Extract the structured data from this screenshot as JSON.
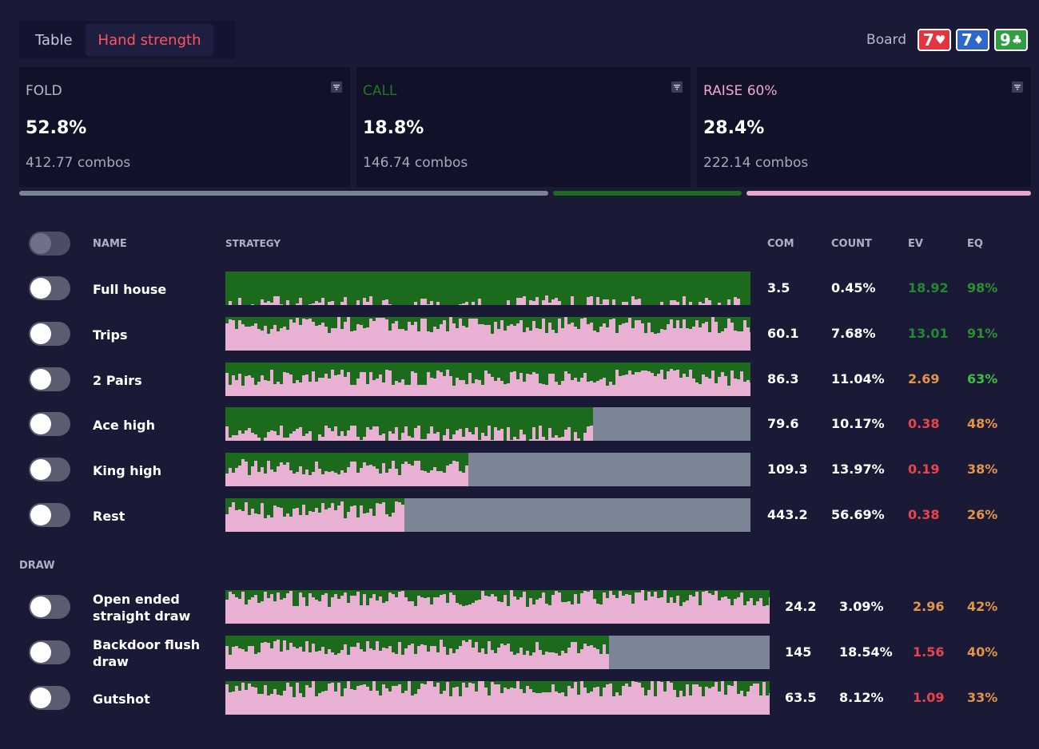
{
  "tabs": [
    {
      "label": "Table",
      "active": false
    },
    {
      "label": "Hand strength",
      "active": true
    }
  ],
  "board": {
    "label": "Board",
    "cards": [
      {
        "rank": "7",
        "suit": "♥",
        "color": "#e3343f"
      },
      {
        "rank": "7",
        "suit": "♦",
        "color": "#2f66cc"
      },
      {
        "rank": "9",
        "suit": "♣",
        "color": "#2e9e3e"
      }
    ]
  },
  "actions": [
    {
      "name": "FOLD",
      "percent": "52.8%",
      "combos": "412.77 combos",
      "color": "#7a8494"
    },
    {
      "name": "CALL",
      "percent": "18.8%",
      "combos": "146.74 combos",
      "color": "#1e6b1e"
    },
    {
      "name": "RAISE 60%",
      "percent": "28.4%",
      "combos": "222.14 combos",
      "color": "#e8a8cc"
    }
  ],
  "columns": {
    "name": "NAME",
    "strategy": "STRATEGY",
    "com": "COM",
    "count": "COUNT",
    "ev": "EV",
    "eq": "EQ"
  },
  "colors": {
    "fold": "#7b8595",
    "call": "#1c6a1c",
    "raise": "#e8b0d2",
    "ev_green": "#1f8a2f",
    "ev_orange": "#e29548",
    "ev_red": "#e8434e",
    "eq_green": "#3fbf3f",
    "eq_orange": "#e29548"
  },
  "made_hands": [
    {
      "name": "Full house",
      "com": "3.5",
      "count": "0.45%",
      "ev": "18.92",
      "eq": "98%",
      "ev_color": "#1f8a2f",
      "eq_color": "#2e8f2e",
      "strategy": {
        "fold": 0.0,
        "call": 0.97,
        "raise": 0.03
      }
    },
    {
      "name": "Trips",
      "com": "60.1",
      "count": "7.68%",
      "ev": "13.01",
      "eq": "91%",
      "ev_color": "#1f8a2f",
      "eq_color": "#2e8f2e",
      "strategy": {
        "fold": 0.0,
        "call": 0.25,
        "raise": 0.75
      }
    },
    {
      "name": "2 Pairs",
      "com": "86.3",
      "count": "11.04%",
      "ev": "2.69",
      "eq": "63%",
      "ev_color": "#e29548",
      "eq_color": "#3fbf3f",
      "strategy": {
        "fold": 0.0,
        "call": 0.45,
        "raise": 0.55
      }
    },
    {
      "name": "Ace high",
      "com": "79.6",
      "count": "10.17%",
      "ev": "0.38",
      "eq": "48%",
      "ev_color": "#e8434e",
      "eq_color": "#e29548",
      "strategy": {
        "fold": 0.3,
        "call": 0.55,
        "raise": 0.15
      }
    },
    {
      "name": "King high",
      "com": "109.3",
      "count": "13.97%",
      "ev": "0.19",
      "eq": "38%",
      "ev_color": "#e8434e",
      "eq_color": "#e29548",
      "strategy": {
        "fold": 0.54,
        "call": 0.2,
        "raise": 0.26
      }
    },
    {
      "name": "Rest",
      "com": "443.2",
      "count": "56.69%",
      "ev": "0.38",
      "eq": "26%",
      "ev_color": "#e8434e",
      "eq_color": "#e29548",
      "strategy": {
        "fold": 0.66,
        "call": 0.12,
        "raise": 0.22
      }
    }
  ],
  "draw_section": {
    "label": "DRAW"
  },
  "draws": [
    {
      "name_line1": "Open ended",
      "name_line2": "straight draw",
      "com": "24.2",
      "count": "3.09%",
      "ev": "2.96",
      "eq": "42%",
      "ev_color": "#e29548",
      "eq_color": "#e29548",
      "strategy": {
        "fold": 0.0,
        "call": 0.25,
        "raise": 0.75
      }
    },
    {
      "name_line1": "Backdoor flush",
      "name_line2": "draw",
      "com": "145",
      "count": "18.54%",
      "ev": "1.56",
      "eq": "40%",
      "ev_color": "#e8434e",
      "eq_color": "#e29548",
      "strategy": {
        "fold": 0.3,
        "call": 0.25,
        "raise": 0.45
      }
    },
    {
      "name_line1": "Gutshot",
      "name_line2": "",
      "com": "63.5",
      "count": "8.12%",
      "ev": "1.09",
      "eq": "33%",
      "ev_color": "#e8434e",
      "eq_color": "#e29548",
      "strategy": {
        "fold": 0.0,
        "call": 0.22,
        "raise": 0.78
      }
    }
  ]
}
